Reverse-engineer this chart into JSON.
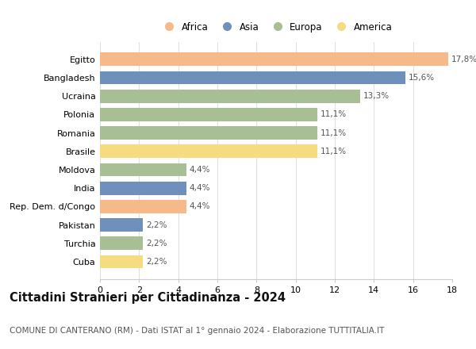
{
  "categories": [
    "Egitto",
    "Bangladesh",
    "Ucraina",
    "Polonia",
    "Romania",
    "Brasile",
    "Moldova",
    "India",
    "Rep. Dem. d/Congo",
    "Pakistan",
    "Turchia",
    "Cuba"
  ],
  "values": [
    17.8,
    15.6,
    13.3,
    11.1,
    11.1,
    11.1,
    4.4,
    4.4,
    4.4,
    2.2,
    2.2,
    2.2
  ],
  "labels": [
    "17,8%",
    "15,6%",
    "13,3%",
    "11,1%",
    "11,1%",
    "11,1%",
    "4,4%",
    "4,4%",
    "4,4%",
    "2,2%",
    "2,2%",
    "2,2%"
  ],
  "colors": [
    "#F5B98A",
    "#7090BC",
    "#A8BF96",
    "#A8BF96",
    "#A8BF96",
    "#F5DC80",
    "#A8BF96",
    "#7090BC",
    "#F5B98A",
    "#7090BC",
    "#A8BF96",
    "#F5DC80"
  ],
  "legend_labels": [
    "Africa",
    "Asia",
    "Europa",
    "America"
  ],
  "legend_colors": [
    "#F5B98A",
    "#7090BC",
    "#A8BF96",
    "#F5DC80"
  ],
  "xlim": [
    0,
    18
  ],
  "xticks": [
    0,
    2,
    4,
    6,
    8,
    10,
    12,
    14,
    16,
    18
  ],
  "title": "Cittadini Stranieri per Cittadinanza - 2024",
  "subtitle": "COMUNE DI CANTERANO (RM) - Dati ISTAT al 1° gennaio 2024 - Elaborazione TUTTITALIA.IT",
  "background_color": "#ffffff",
  "bar_height": 0.72,
  "title_fontsize": 10.5,
  "subtitle_fontsize": 7.5,
  "label_fontsize": 7.5,
  "tick_fontsize": 8,
  "legend_fontsize": 8.5
}
